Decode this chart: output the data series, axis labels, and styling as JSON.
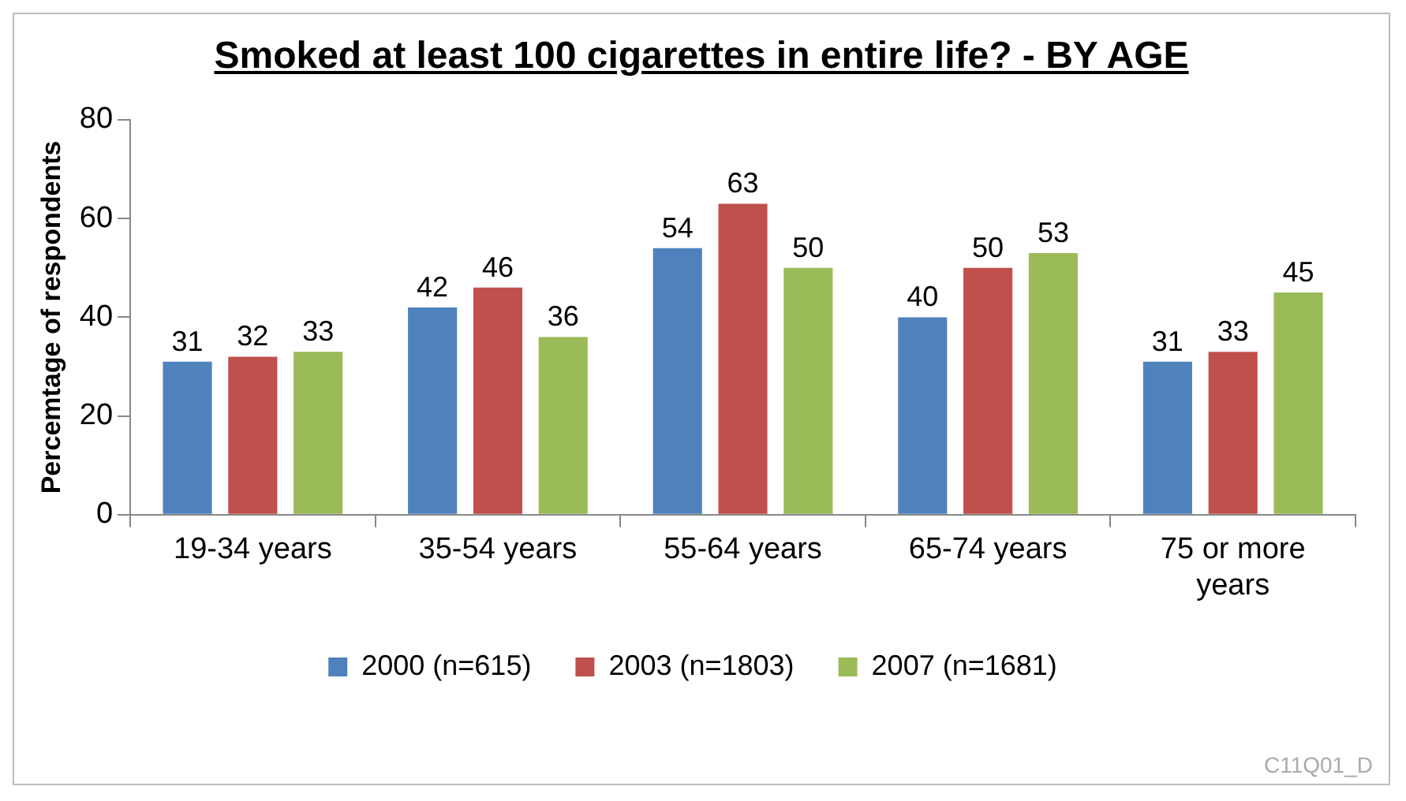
{
  "chart_data": {
    "type": "bar",
    "title": "Smoked at least 100 cigarettes in entire life? - BY AGE",
    "ylabel": "Percemtage of respondents",
    "categories": [
      "19-34 years",
      "35-54 years",
      "55-64 years",
      "65-74 years",
      "75 or more years"
    ],
    "series": [
      {
        "name": "2000 (n=615)",
        "color": "#4f81bd",
        "values": [
          31,
          42,
          54,
          40,
          31
        ]
      },
      {
        "name": "2003 (n=1803)",
        "color": "#c0504d",
        "values": [
          32,
          46,
          63,
          50,
          33
        ]
      },
      {
        "name": "2007 (n=1681)",
        "color": "#9bbb59",
        "values": [
          33,
          36,
          50,
          53,
          45
        ]
      }
    ],
    "ylim": [
      0,
      80
    ],
    "yticks": [
      0,
      20,
      40,
      60,
      80
    ],
    "grid": false,
    "legend": "bottom",
    "data_labels": true,
    "annotations": [
      "C11Q01_D"
    ]
  }
}
